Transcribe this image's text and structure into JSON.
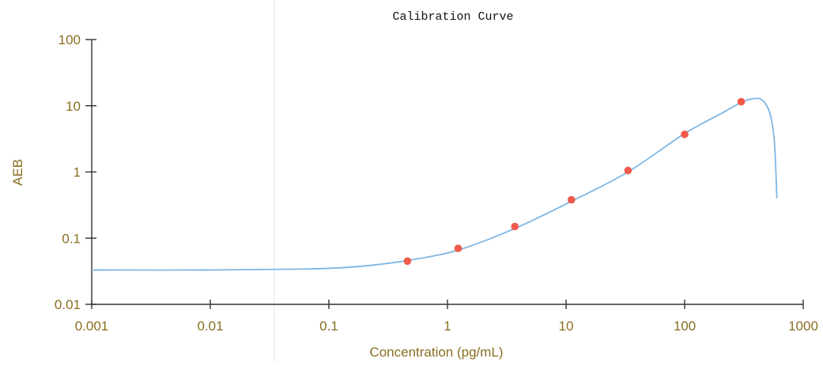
{
  "chart_data": {
    "type": "scatter",
    "title": "Calibration Curve",
    "xlabel": "Concentration (pg/mL)",
    "ylabel": "AEB",
    "x_scale": "log",
    "y_scale": "log",
    "xlim": [
      0.001,
      1000
    ],
    "ylim": [
      0.01,
      100
    ],
    "x_ticks": [
      0.001,
      0.01,
      0.1,
      1,
      10,
      100,
      1000
    ],
    "x_tick_labels": [
      "0.001",
      "0.01",
      "0.1",
      "1",
      "10",
      "100",
      "1000"
    ],
    "y_ticks": [
      0.01,
      0.1,
      1,
      10,
      100
    ],
    "y_tick_labels": [
      "0.01",
      "0.1",
      "1",
      "10",
      "100"
    ],
    "grid": false,
    "series": [
      {
        "type": "scatter",
        "x": [
          0.46,
          1.23,
          3.7,
          11.1,
          33.3,
          100,
          300
        ],
        "y": [
          0.045,
          0.07,
          0.15,
          0.38,
          1.05,
          3.7,
          11.5
        ]
      },
      {
        "type": "line",
        "x": [
          0.001,
          0.01,
          0.05,
          0.1,
          0.2,
          0.46,
          1.23,
          3.7,
          11.1,
          33.3,
          100,
          200,
          300,
          380,
          450,
          520,
          570,
          600
        ],
        "y": [
          0.033,
          0.033,
          0.034,
          0.035,
          0.038,
          0.046,
          0.066,
          0.14,
          0.36,
          1.0,
          3.8,
          7.5,
          11.2,
          12.8,
          12.2,
          8.0,
          3.0,
          0.4
        ]
      }
    ],
    "colors": {
      "points": "#f05a4a",
      "curve": "#7fb6e3",
      "axis": "#333333",
      "tick_text": "#8a6d1f",
      "axis_label": "#8a6d1f",
      "title": "#111111",
      "vertical_line": "#dbeaf0"
    }
  }
}
